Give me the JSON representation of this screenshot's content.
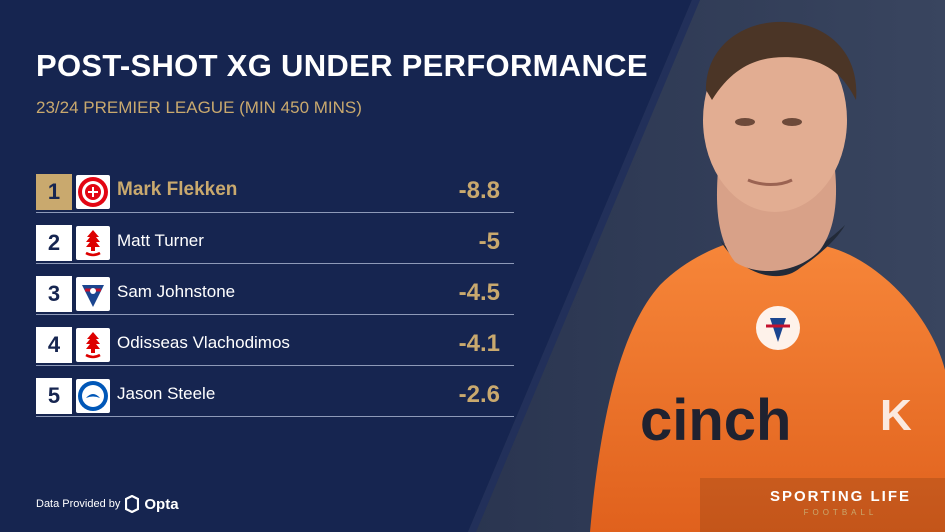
{
  "header": {
    "title": "POST-SHOT XG UNDER PERFORMANCE",
    "subtitle": "23/24 PREMIER LEAGUE (MIN 450 MINS)"
  },
  "chart_data": {
    "type": "table",
    "title": "POST-SHOT XG UNDER PERFORMANCE",
    "subtitle": "23/24 PREMIER LEAGUE (MIN 450 MINS)",
    "rows": [
      {
        "rank": "1",
        "player": "Mark Flekken",
        "club_icon": "brentford-badge-icon",
        "value": "-8.8"
      },
      {
        "rank": "2",
        "player": "Matt Turner",
        "club_icon": "nottingham-forest-badge-icon",
        "value": "-5"
      },
      {
        "rank": "3",
        "player": "Sam Johnstone",
        "club_icon": "crystal-palace-badge-icon",
        "value": "-4.5"
      },
      {
        "rank": "4",
        "player": "Odisseas Vlachodimos",
        "club_icon": "nottingham-forest-badge-icon",
        "value": "-4.1"
      },
      {
        "rank": "5",
        "player": "Jason Steele",
        "club_icon": "brighton-badge-icon",
        "value": "-2.6"
      }
    ]
  },
  "footer": {
    "provider_text": "Data Provided by",
    "provider_name": "Opta",
    "brand": "SPORTING LIFE",
    "brand_sub": "FOOTBALL"
  },
  "colors": {
    "navy": "#162550",
    "gold": "#c9a96e",
    "kit_orange": "#f47a2a",
    "white": "#ffffff"
  }
}
